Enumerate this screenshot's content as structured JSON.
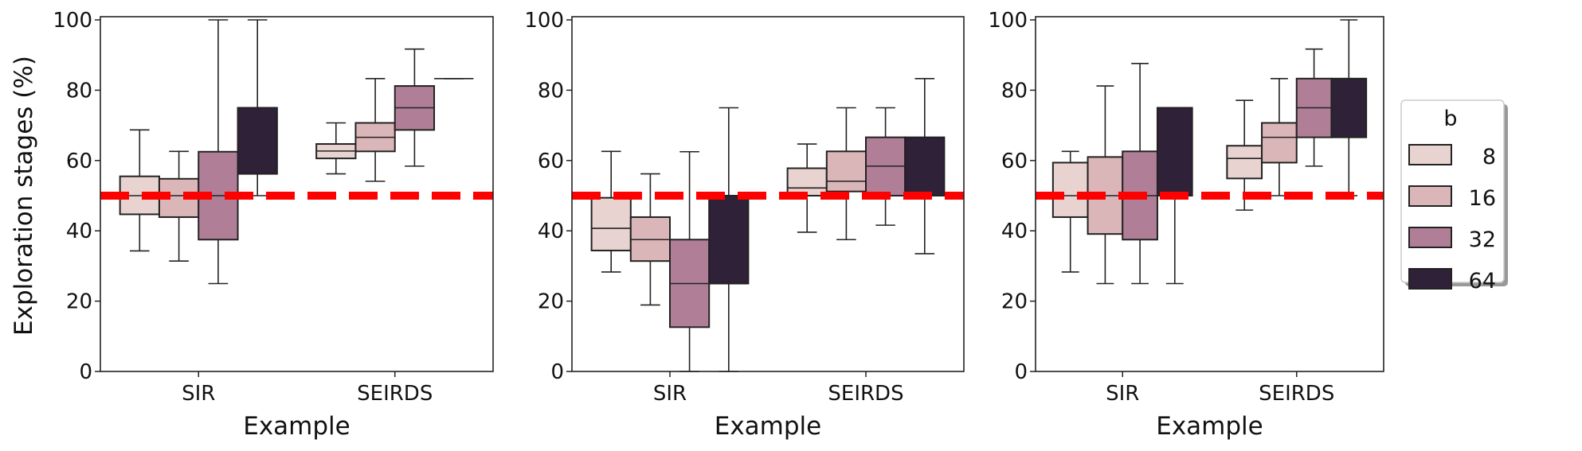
{
  "chart_data": {
    "type": "box",
    "ylabel": "Exploration stages (%)",
    "xlabel": "Example",
    "ylim": [
      0,
      100
    ],
    "yticks": [
      "0",
      "20",
      "40",
      "60",
      "80",
      "100"
    ],
    "categories": [
      "SIR",
      "SEIRDS"
    ],
    "reference_line": {
      "value": 50,
      "color": "#ff0000",
      "style": "dashed"
    },
    "legend": {
      "title": "b",
      "placement": "right",
      "entries": [
        "8",
        "16",
        "32",
        "64"
      ]
    },
    "hue_colors": [
      "#e8d3d0",
      "#dbb6b9",
      "#b07f97",
      "#2e2138"
    ],
    "panels": [
      {
        "groups": [
          {
            "category": "SIR",
            "boxes": [
              {
                "b": "8",
                "lo": 34.3,
                "q1": 44.7,
                "med": 50,
                "q3": 55.5,
                "hi": 68.7
              },
              {
                "b": "16",
                "lo": 31.4,
                "q1": 43.9,
                "med": 50,
                "q3": 54.8,
                "hi": 62.6
              },
              {
                "b": "32",
                "lo": 25,
                "q1": 37.5,
                "med": 50,
                "q3": 62.5,
                "hi": 100
              },
              {
                "b": "64",
                "lo": 50,
                "q1": 56.2,
                "med": 56.2,
                "q3": 75,
                "hi": 100
              }
            ]
          },
          {
            "category": "SEIRDS",
            "boxes": [
              {
                "b": "8",
                "lo": 56.2,
                "q1": 60.6,
                "med": 62.7,
                "q3": 64.7,
                "hi": 70.7
              },
              {
                "b": "16",
                "lo": 54.1,
                "q1": 62.6,
                "med": 66.6,
                "q3": 70.7,
                "hi": 83.3
              },
              {
                "b": "32",
                "lo": 58.4,
                "q1": 68.7,
                "med": 75,
                "q3": 81.2,
                "hi": 91.7
              },
              {
                "b": "64",
                "lo": 83.3,
                "q1": 83.3,
                "med": 83.3,
                "q3": 83.3,
                "hi": 83.3
              }
            ]
          }
        ]
      },
      {
        "groups": [
          {
            "category": "SIR",
            "boxes": [
              {
                "b": "8",
                "lo": 28.3,
                "q1": 34.4,
                "med": 40.7,
                "q3": 49.4,
                "hi": 62.6
              },
              {
                "b": "16",
                "lo": 18.9,
                "q1": 31.4,
                "med": 37.5,
                "q3": 43.9,
                "hi": 56.2
              },
              {
                "b": "32",
                "lo": 0,
                "q1": 12.6,
                "med": 25,
                "q3": 37.5,
                "hi": 62.5
              },
              {
                "b": "64",
                "lo": 0,
                "q1": 25,
                "med": 50,
                "q3": 50,
                "hi": 75
              }
            ]
          },
          {
            "category": "SEIRDS",
            "boxes": [
              {
                "b": "8",
                "lo": 39.6,
                "q1": 50,
                "med": 52.2,
                "q3": 57.8,
                "hi": 64.7
              },
              {
                "b": "16",
                "lo": 37.5,
                "q1": 51.2,
                "med": 54.1,
                "q3": 62.6,
                "hi": 75
              },
              {
                "b": "32",
                "lo": 41.6,
                "q1": 50,
                "med": 58.4,
                "q3": 66.6,
                "hi": 75
              },
              {
                "b": "64",
                "lo": 33.5,
                "q1": 50,
                "med": 50,
                "q3": 66.6,
                "hi": 83.3
              }
            ]
          }
        ]
      },
      {
        "groups": [
          {
            "category": "SIR",
            "boxes": [
              {
                "b": "8",
                "lo": 28.3,
                "q1": 43.9,
                "med": 50,
                "q3": 59.4,
                "hi": 62.6
              },
              {
                "b": "16",
                "lo": 25,
                "q1": 39.1,
                "med": 50,
                "q3": 61,
                "hi": 81.2
              },
              {
                "b": "32",
                "lo": 25,
                "q1": 37.5,
                "med": 50,
                "q3": 62.6,
                "hi": 87.6
              },
              {
                "b": "64",
                "lo": 25,
                "q1": 50,
                "med": 50,
                "q3": 75,
                "hi": 75
              }
            ]
          },
          {
            "category": "SEIRDS",
            "boxes": [
              {
                "b": "8",
                "lo": 45.9,
                "q1": 54.9,
                "med": 60.6,
                "q3": 64.2,
                "hi": 77.1
              },
              {
                "b": "16",
                "lo": 50,
                "q1": 59.4,
                "med": 66.6,
                "q3": 70.7,
                "hi": 83.3
              },
              {
                "b": "32",
                "lo": 58.4,
                "q1": 66.6,
                "med": 75,
                "q3": 83.3,
                "hi": 91.7
              },
              {
                "b": "64",
                "lo": 50,
                "q1": 66.6,
                "med": 66.6,
                "q3": 83.3,
                "hi": 100
              }
            ]
          }
        ]
      }
    ]
  }
}
